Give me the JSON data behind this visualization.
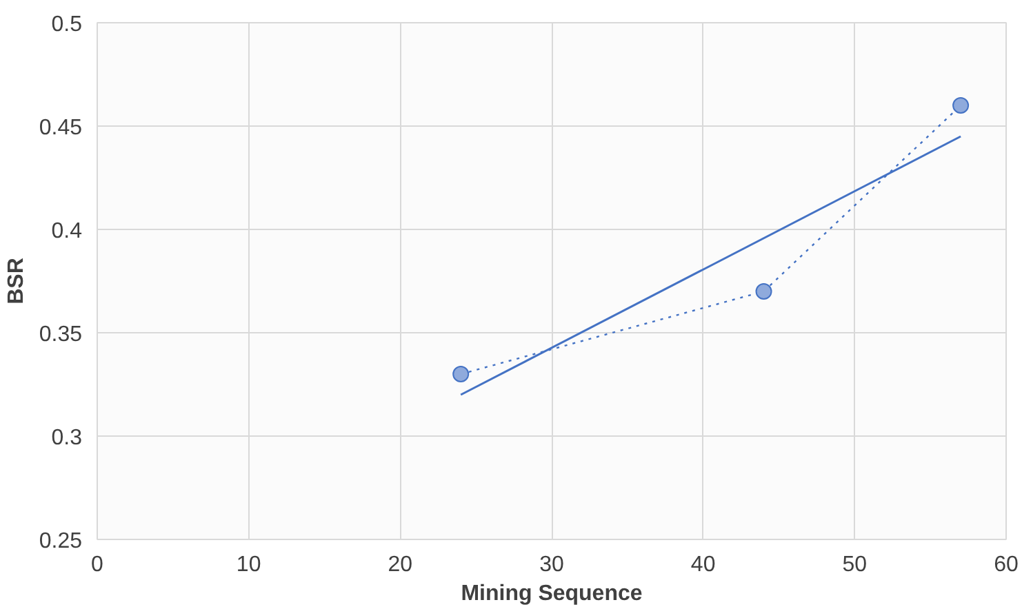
{
  "chart_data": {
    "type": "line",
    "xlabel": "Mining Sequence",
    "ylabel": "BSR",
    "xlim": [
      0,
      60
    ],
    "ylim": [
      0.25,
      0.5
    ],
    "xticks": [
      0,
      10,
      20,
      30,
      40,
      50,
      60
    ],
    "yticks": [
      0.25,
      0.3,
      0.35,
      0.4,
      0.45,
      0.5
    ],
    "grid": true,
    "series": [
      {
        "x": [
          24,
          44,
          57
        ],
        "values": [
          0.33,
          0.37,
          0.46
        ],
        "color": "#4472c4",
        "line_style": "dotted",
        "marker": "circle"
      },
      {
        "x": [
          24,
          57
        ],
        "values": [
          0.32,
          0.445
        ],
        "color": "#4472c4",
        "line_style": "solid",
        "marker": "none"
      }
    ]
  }
}
